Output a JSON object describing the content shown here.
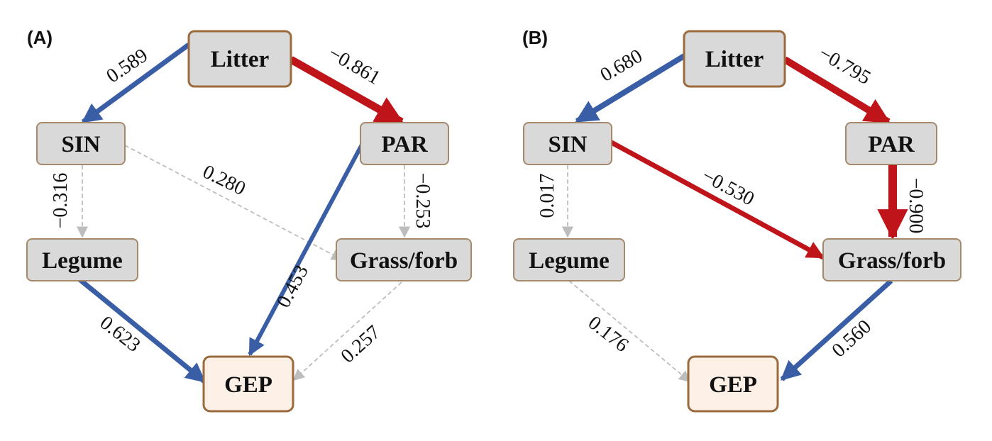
{
  "colors": {
    "positive": "#3a5ea5",
    "negative": "#c0141b",
    "nonsignificant": "#bdbdbd",
    "node_fill": "#d9d9d9",
    "node_border": "#a6896b",
    "gep_fill": "#fdf0e6",
    "gep_border": "#9b6b3e"
  },
  "panels": [
    {
      "label": "(A)",
      "nodes": {
        "litter": "Litter",
        "sin": "SIN",
        "par": "PAR",
        "legume": "Legume",
        "grass": "Grass/forb",
        "gep": "GEP"
      },
      "paths": [
        {
          "from": "Litter",
          "to": "SIN",
          "coefficient": "0.589",
          "sign": "positive",
          "significant": true
        },
        {
          "from": "Litter",
          "to": "PAR",
          "coefficient": "−0.861",
          "sign": "negative",
          "significant": true
        },
        {
          "from": "SIN",
          "to": "Legume",
          "coefficient": "−0.316",
          "sign": "negative",
          "significant": false
        },
        {
          "from": "SIN",
          "to": "Grass/forb",
          "coefficient": "0.280",
          "sign": "positive",
          "significant": false
        },
        {
          "from": "PAR",
          "to": "Grass/forb",
          "coefficient": "−0.253",
          "sign": "negative",
          "significant": false
        },
        {
          "from": "PAR",
          "to": "GEP",
          "coefficient": "0.453",
          "sign": "positive",
          "significant": true
        },
        {
          "from": "Legume",
          "to": "GEP",
          "coefficient": "0.623",
          "sign": "positive",
          "significant": true
        },
        {
          "from": "Grass/forb",
          "to": "GEP",
          "coefficient": "0.257",
          "sign": "positive",
          "significant": false
        }
      ]
    },
    {
      "label": "(B)",
      "nodes": {
        "litter": "Litter",
        "sin": "SIN",
        "par": "PAR",
        "legume": "Legume",
        "grass": "Grass/forb",
        "gep": "GEP"
      },
      "paths": [
        {
          "from": "Litter",
          "to": "SIN",
          "coefficient": "0.680",
          "sign": "positive",
          "significant": true
        },
        {
          "from": "Litter",
          "to": "PAR",
          "coefficient": "−0.795",
          "sign": "negative",
          "significant": true
        },
        {
          "from": "SIN",
          "to": "Legume",
          "coefficient": "0.017",
          "sign": "positive",
          "significant": false
        },
        {
          "from": "SIN",
          "to": "Grass/forb",
          "coefficient": "−0.530",
          "sign": "negative",
          "significant": true
        },
        {
          "from": "PAR",
          "to": "Grass/forb",
          "coefficient": "−0.900",
          "sign": "negative",
          "significant": true
        },
        {
          "from": "Legume",
          "to": "GEP",
          "coefficient": "0.176",
          "sign": "positive",
          "significant": false
        },
        {
          "from": "Grass/forb",
          "to": "GEP",
          "coefficient": "0.560",
          "sign": "positive",
          "significant": true
        }
      ]
    }
  ]
}
